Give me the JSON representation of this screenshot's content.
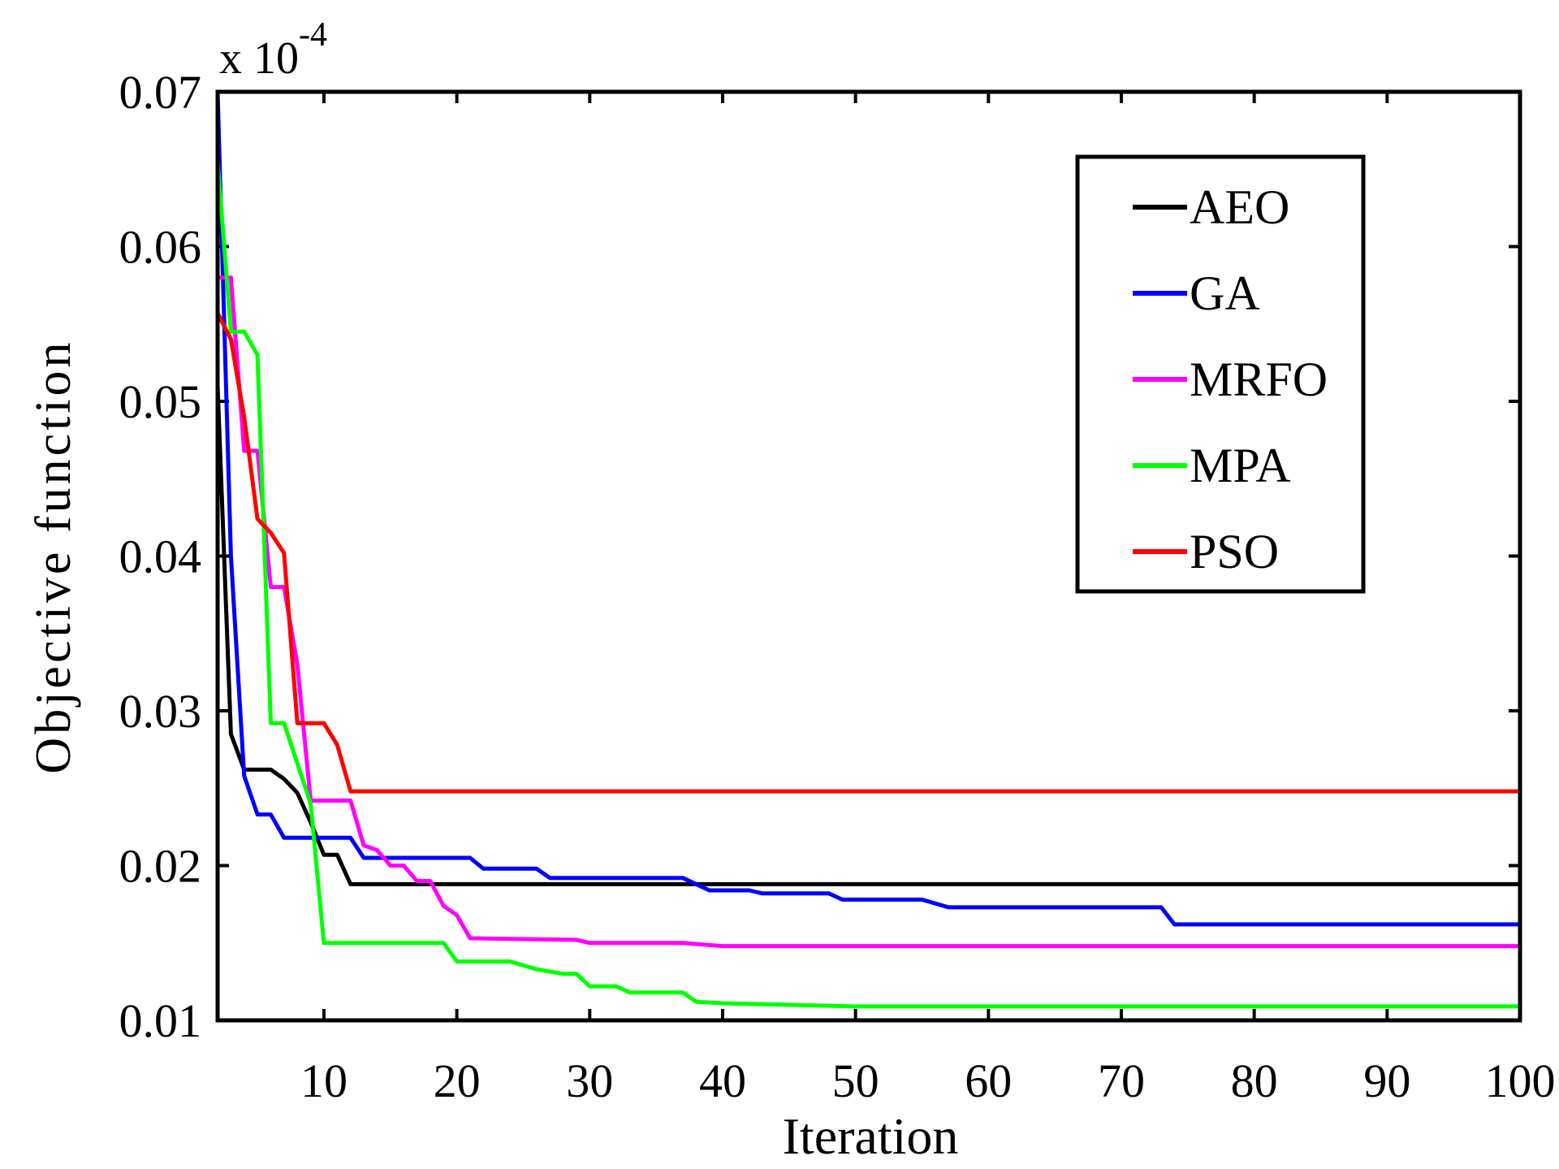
{
  "chart_data": {
    "type": "line",
    "title": "",
    "xlabel": "Iteration",
    "ylabel": "Objective function",
    "xlim": [
      2,
      100
    ],
    "ylim": [
      0.01,
      0.07
    ],
    "y_exponent_label": "x 10",
    "y_exponent_power": "-4",
    "xticks": [
      10,
      20,
      30,
      40,
      50,
      60,
      70,
      80,
      90,
      100
    ],
    "xtick_labels": [
      "10",
      "20",
      "30",
      "40",
      "50",
      "60",
      "70",
      "80",
      "90",
      "100"
    ],
    "yticks": [
      0.01,
      0.02,
      0.03,
      0.04,
      0.05,
      0.06,
      0.07
    ],
    "ytick_labels": [
      "0.01",
      "0.02",
      "0.03",
      "0.04",
      "0.05",
      "0.06",
      "0.07"
    ],
    "legend_position": "top-right",
    "series": [
      {
        "name": "AEO",
        "color": "#000000",
        "points": [
          [
            2,
            0.051
          ],
          [
            3,
            0.0285
          ],
          [
            4,
            0.0262
          ],
          [
            6,
            0.0262
          ],
          [
            7,
            0.0256
          ],
          [
            8,
            0.0247
          ],
          [
            9,
            0.0228
          ],
          [
            10,
            0.0207
          ],
          [
            11,
            0.0207
          ],
          [
            12,
            0.0188
          ],
          [
            100,
            0.0188
          ]
        ]
      },
      {
        "name": "GA",
        "color": "#0000ff",
        "points": [
          [
            2,
            0.07
          ],
          [
            3,
            0.04
          ],
          [
            4,
            0.0258
          ],
          [
            5,
            0.0233
          ],
          [
            6,
            0.0233
          ],
          [
            7,
            0.0218
          ],
          [
            12,
            0.0218
          ],
          [
            13,
            0.0205
          ],
          [
            21,
            0.0205
          ],
          [
            22,
            0.0198
          ],
          [
            26,
            0.0198
          ],
          [
            27,
            0.0192
          ],
          [
            37,
            0.0192
          ],
          [
            39,
            0.0184
          ],
          [
            42,
            0.0184
          ],
          [
            43,
            0.0182
          ],
          [
            48,
            0.0182
          ],
          [
            49,
            0.0178
          ],
          [
            55,
            0.0178
          ],
          [
            57,
            0.0173
          ],
          [
            73,
            0.0173
          ],
          [
            74,
            0.0162
          ],
          [
            100,
            0.0162
          ]
        ]
      },
      {
        "name": "MRFO",
        "color": "#ff00ff",
        "points": [
          [
            2,
            0.058
          ],
          [
            3,
            0.058
          ],
          [
            4,
            0.0468
          ],
          [
            5,
            0.0468
          ],
          [
            6,
            0.038
          ],
          [
            7,
            0.038
          ],
          [
            8,
            0.033
          ],
          [
            9,
            0.0242
          ],
          [
            12,
            0.0242
          ],
          [
            13,
            0.0213
          ],
          [
            14,
            0.021
          ],
          [
            15,
            0.02
          ],
          [
            16,
            0.02
          ],
          [
            17,
            0.019
          ],
          [
            18,
            0.019
          ],
          [
            19,
            0.0174
          ],
          [
            20,
            0.0168
          ],
          [
            21,
            0.0153
          ],
          [
            29,
            0.0152
          ],
          [
            30,
            0.015
          ],
          [
            37,
            0.015
          ],
          [
            40,
            0.0148
          ],
          [
            100,
            0.0148
          ]
        ]
      },
      {
        "name": "MPA",
        "color": "#00ff00",
        "points": [
          [
            2,
            0.0655
          ],
          [
            3,
            0.0545
          ],
          [
            4,
            0.0545
          ],
          [
            5,
            0.053
          ],
          [
            6,
            0.0292
          ],
          [
            7,
            0.0292
          ],
          [
            9,
            0.024
          ],
          [
            10,
            0.015
          ],
          [
            19,
            0.015
          ],
          [
            20,
            0.0138
          ],
          [
            24,
            0.0138
          ],
          [
            26,
            0.0133
          ],
          [
            28,
            0.013
          ],
          [
            29,
            0.013
          ],
          [
            30,
            0.0122
          ],
          [
            32,
            0.0122
          ],
          [
            33,
            0.0118
          ],
          [
            37,
            0.0118
          ],
          [
            38,
            0.0112
          ],
          [
            40,
            0.0111
          ],
          [
            50,
            0.0109
          ],
          [
            100,
            0.0109
          ]
        ]
      },
      {
        "name": "PSO",
        "color": "#ff0000",
        "points": [
          [
            2,
            0.0557
          ],
          [
            3,
            0.054
          ],
          [
            4,
            0.049
          ],
          [
            5,
            0.0424
          ],
          [
            6,
            0.0415
          ],
          [
            7,
            0.0402
          ],
          [
            8,
            0.0292
          ],
          [
            10,
            0.0292
          ],
          [
            11,
            0.0278
          ],
          [
            12,
            0.0248
          ],
          [
            100,
            0.0248
          ]
        ]
      }
    ]
  }
}
